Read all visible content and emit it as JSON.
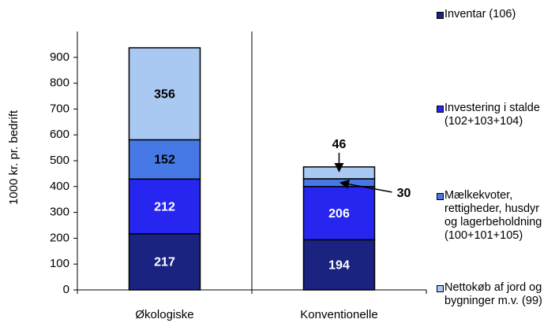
{
  "chart_data": {
    "type": "stacked_bar",
    "y_label": "1000 kr. pr. bedrift",
    "categories": [
      "Økologiske",
      "Konventionelle"
    ],
    "series": [
      {
        "name": "Inventar (106)",
        "color": "#1b2380",
        "values": [
          217,
          194
        ]
      },
      {
        "name": "Investering i stalde (102+103+104)",
        "color": "#2626f0",
        "values": [
          212,
          206
        ]
      },
      {
        "name": "Mælkekvoter, rettigheder, husdyr og lagerbeholdning (100+101+105)",
        "color": "#4679e6",
        "values": [
          152,
          30
        ]
      },
      {
        "name": "Nettokøb af jord og bygninger m.v. (99)",
        "color": "#a9c9f3",
        "values": [
          356,
          46
        ]
      }
    ],
    "ylim": [
      0,
      1000
    ],
    "yticks": [
      0,
      100,
      200,
      300,
      400,
      500,
      600,
      700,
      800,
      900
    ]
  }
}
